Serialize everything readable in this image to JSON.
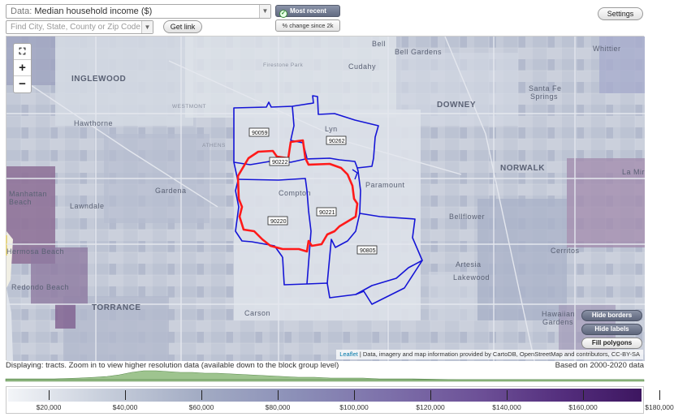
{
  "controls": {
    "data_prefix": "Data:",
    "data_value": "Median household income ($)",
    "search_placeholder": "Find City, State, County or Zip Code",
    "get_link": "Get link",
    "toggle_recent": "Most recent value",
    "toggle_change": "% change since 2k",
    "settings": "Settings"
  },
  "map": {
    "places": {
      "inglewood": "INGLEWOOD",
      "downey": "DOWNEY",
      "torrance": "TORRANCE",
      "hawthorne": "Hawthorne",
      "gardena": "Gardena",
      "lawndale": "Lawndale",
      "manhattan_beach": "Manhattan Beach",
      "hermosa_beach": "Hermosa Beach",
      "redondo_beach": "Redondo Beach",
      "carson": "Carson",
      "compton": "Compton",
      "paramount": "Paramount",
      "bellflower": "Bellflower",
      "artesia": "Artesia",
      "cerritos": "Cerritos",
      "lakewood": "Lakewood",
      "norwalk": "NORWALK",
      "la_mirada": "La Mir",
      "santa_fe_springs": "Santa Fe Springs",
      "whittier": "Whittier",
      "bell_gardens": "Bell Gardens",
      "bell": "Bell",
      "cudahy": "Cudahy",
      "firestone_park": "Firestone Park",
      "westmont": "WESTMONT",
      "athens": "ATHENS",
      "lynwood": "Lyn",
      "hawaiian_gardens": "Hawaiian Gardens"
    },
    "zip_labels": [
      "90059",
      "90262",
      "90222",
      "90220",
      "90221",
      "90805"
    ],
    "buttons": {
      "hide_borders": "Hide borders",
      "hide_labels": "Hide labels",
      "fill_polygons": "Fill polygons"
    },
    "attribution": {
      "leaflet": "Leaflet",
      "rest": " | Data, imagery and map information provided by CartoDB, OpenStreetMap and contributors, CC-BY-SA"
    },
    "colors": {
      "boundary": "#1515d6",
      "highlight": "#ff1a1a"
    }
  },
  "footer": {
    "displaying": "Displaying: tracts. Zoom in to view higher resolution data (available down to the block group level)",
    "based_on": "Based on 2000-2020 data"
  },
  "legend": {
    "ticks": [
      "$20,000",
      "$40,000",
      "$60,000",
      "$80,000",
      "$100,000",
      "$120,000",
      "$140,000",
      "$160,000",
      "$180,000"
    ],
    "color_low": "#f3f5f8",
    "color_high": "#3d1660"
  }
}
